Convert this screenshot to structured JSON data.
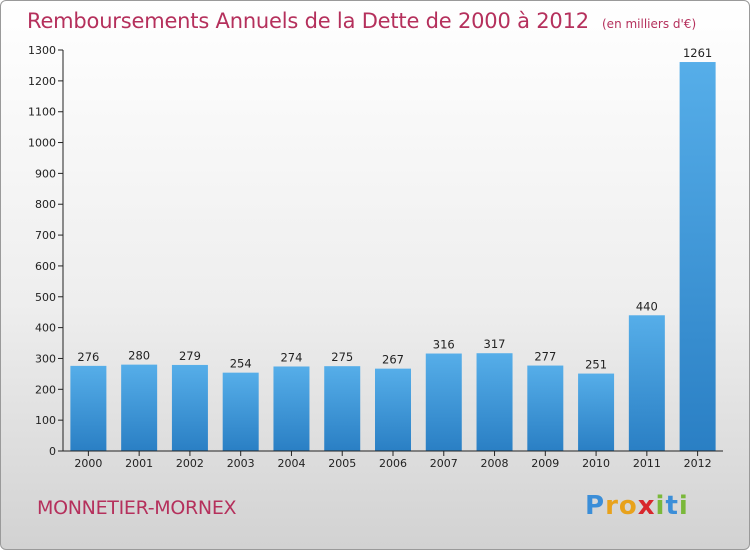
{
  "header": {
    "title": "Remboursements Annuels de la Dette de 2000 à 2012",
    "units": "(en milliers d'€)"
  },
  "footer": {
    "commune": "MONNETIER-MORNEX",
    "logo_letters": [
      {
        "char": "P",
        "color": "#3b8ed8"
      },
      {
        "char": "r",
        "color": "#e8a21c"
      },
      {
        "char": "o",
        "color": "#e8a21c"
      },
      {
        "char": "x",
        "color": "#d8272d"
      },
      {
        "char": "i",
        "color": "#7ab83a"
      },
      {
        "char": "t",
        "color": "#3b8ed8"
      },
      {
        "char": "i",
        "color": "#7ab83a"
      }
    ]
  },
  "chart_data": {
    "type": "bar",
    "title": "Remboursements Annuels de la Dette de 2000 à 2012",
    "units": "(en milliers d'€)",
    "categories": [
      "2000",
      "2001",
      "2002",
      "2003",
      "2004",
      "2005",
      "2006",
      "2007",
      "2008",
      "2009",
      "2010",
      "2011",
      "2012"
    ],
    "values": [
      276,
      280,
      279,
      254,
      274,
      275,
      267,
      316,
      317,
      277,
      251,
      440,
      1261
    ],
    "ylim": [
      0,
      1300
    ],
    "yticks": [
      0,
      100,
      200,
      300,
      400,
      500,
      600,
      700,
      800,
      900,
      1000,
      1100,
      1200,
      1300
    ],
    "grid": false,
    "bar_color": "#3a92d6"
  }
}
